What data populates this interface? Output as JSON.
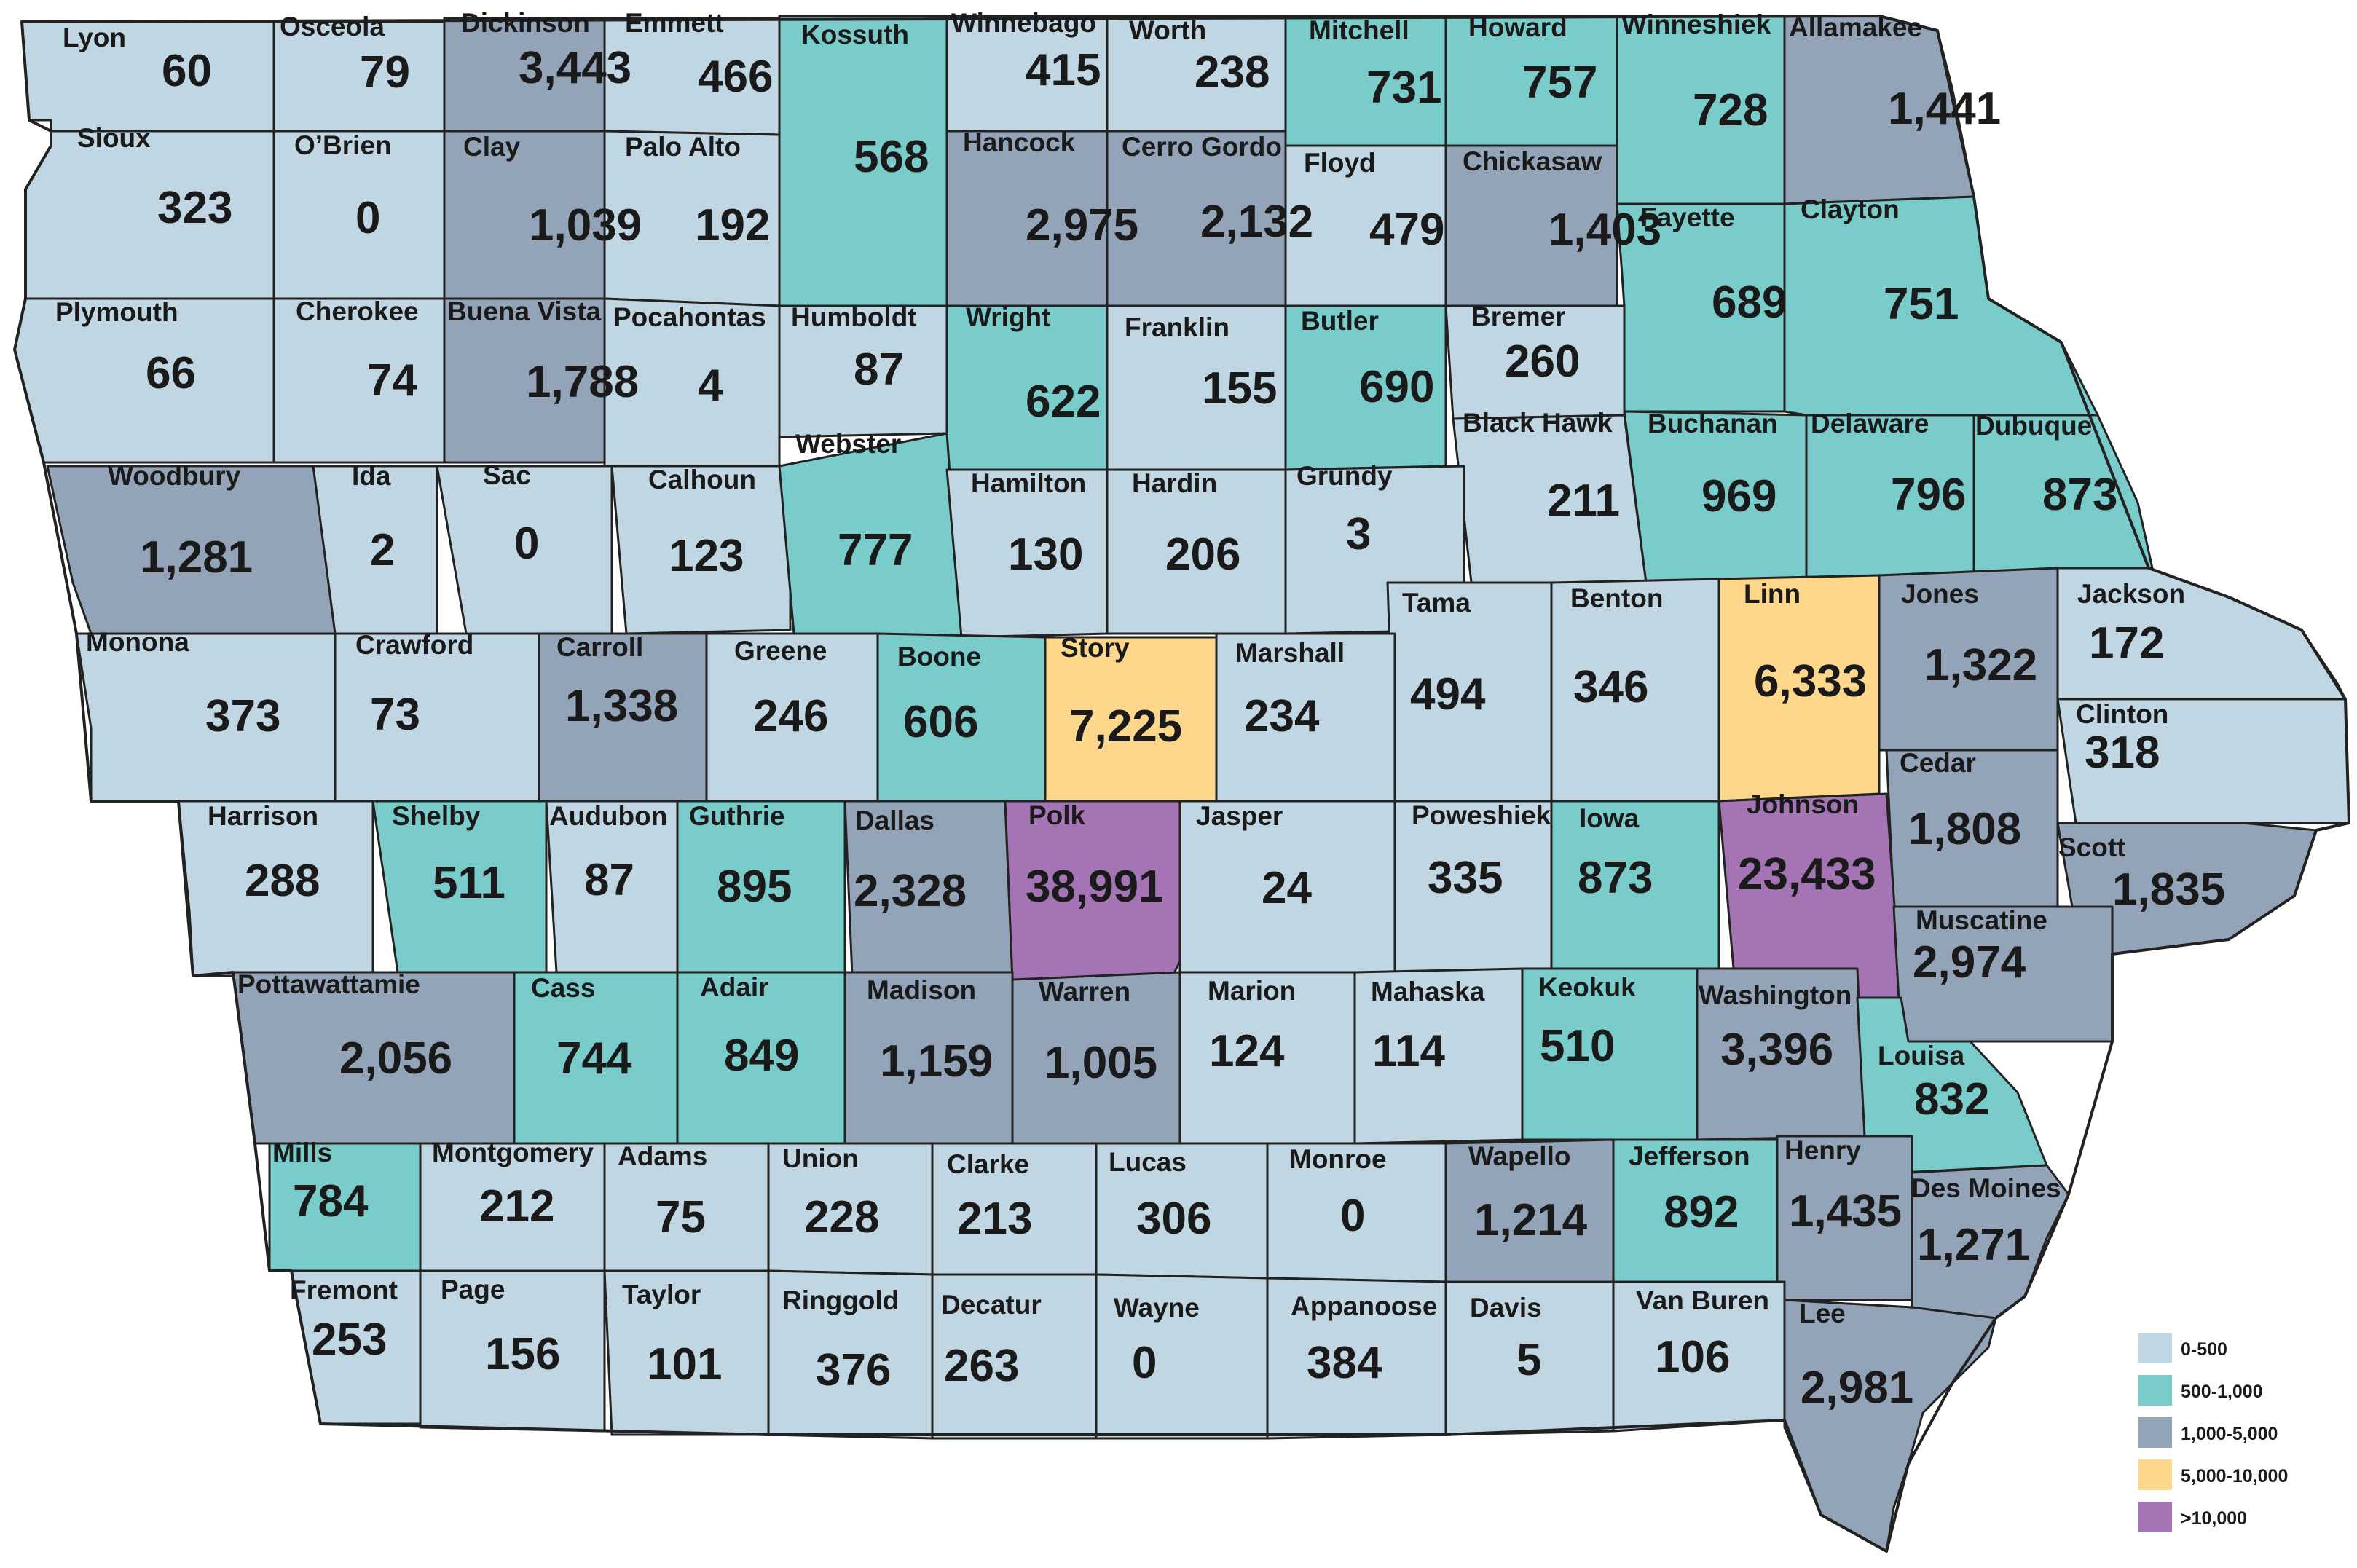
{
  "legend": [
    {
      "label": "0-500",
      "color": "#c0d6e3"
    },
    {
      "label": "500-1,000",
      "color": "#7accca"
    },
    {
      "label": "1,000-5,000",
      "color": "#93a4b9"
    },
    {
      "label": "5,000-10,000",
      "color": "#fdd78c"
    },
    {
      "label": ">10,000",
      "color": "#a474b5"
    }
  ],
  "counties": [
    {
      "name": "Lyon",
      "value": "60",
      "bin": 0
    },
    {
      "name": "Osceola",
      "value": "79",
      "bin": 0
    },
    {
      "name": "Dickinson",
      "value": "3,443",
      "bin": 2
    },
    {
      "name": "Emmett",
      "value": "466",
      "bin": 0
    },
    {
      "name": "Kossuth",
      "value": "568",
      "bin": 1
    },
    {
      "name": "Winnebago",
      "value": "415",
      "bin": 0
    },
    {
      "name": "Worth",
      "value": "238",
      "bin": 0
    },
    {
      "name": "Mitchell",
      "value": "731",
      "bin": 1
    },
    {
      "name": "Howard",
      "value": "757",
      "bin": 1
    },
    {
      "name": "Winneshiek",
      "value": "728",
      "bin": 1
    },
    {
      "name": "Allamakee",
      "value": "1,441",
      "bin": 2
    },
    {
      "name": "Sioux",
      "value": "323",
      "bin": 0
    },
    {
      "name": "O’Brien",
      "value": "0",
      "bin": 0
    },
    {
      "name": "Clay",
      "value": "1,039",
      "bin": 2
    },
    {
      "name": "Palo Alto",
      "value": "192",
      "bin": 0
    },
    {
      "name": "Hancock",
      "value": "2,975",
      "bin": 2
    },
    {
      "name": "Cerro Gordo",
      "value": "2,132",
      "bin": 2
    },
    {
      "name": "Floyd",
      "value": "479",
      "bin": 0
    },
    {
      "name": "Chickasaw",
      "value": "1,403",
      "bin": 2
    },
    {
      "name": "Fayette",
      "value": "689",
      "bin": 1
    },
    {
      "name": "Clayton",
      "value": "751",
      "bin": 1
    },
    {
      "name": "Plymouth",
      "value": "66",
      "bin": 0
    },
    {
      "name": "Cherokee",
      "value": "74",
      "bin": 0
    },
    {
      "name": "Buena Vista",
      "value": "1,788",
      "bin": 2
    },
    {
      "name": "Pocahontas",
      "value": "4",
      "bin": 0
    },
    {
      "name": "Humboldt",
      "value": "87",
      "bin": 0
    },
    {
      "name": "Wright",
      "value": "622",
      "bin": 1
    },
    {
      "name": "Franklin",
      "value": "155",
      "bin": 0
    },
    {
      "name": "Butler",
      "value": "690",
      "bin": 1
    },
    {
      "name": "Bremer",
      "value": "260",
      "bin": 0
    },
    {
      "name": "Black Hawk",
      "value": "211",
      "bin": 0
    },
    {
      "name": "Buchanan",
      "value": "969",
      "bin": 1
    },
    {
      "name": "Delaware",
      "value": "796",
      "bin": 1
    },
    {
      "name": "Dubuque",
      "value": "873",
      "bin": 1
    },
    {
      "name": "Woodbury",
      "value": "1,281",
      "bin": 2
    },
    {
      "name": "Ida",
      "value": "2",
      "bin": 0
    },
    {
      "name": "Sac",
      "value": "0",
      "bin": 0
    },
    {
      "name": "Calhoun",
      "value": "123",
      "bin": 0
    },
    {
      "name": "Webster",
      "value": "777",
      "bin": 1
    },
    {
      "name": "Hamilton",
      "value": "130",
      "bin": 0
    },
    {
      "name": "Hardin",
      "value": "206",
      "bin": 0
    },
    {
      "name": "Grundy",
      "value": "3",
      "bin": 0
    },
    {
      "name": "Tama",
      "value": "494",
      "bin": 0
    },
    {
      "name": "Benton",
      "value": "346",
      "bin": 0
    },
    {
      "name": "Linn",
      "value": "6,333",
      "bin": 3
    },
    {
      "name": "Jones",
      "value": "1,322",
      "bin": 2
    },
    {
      "name": "Jackson",
      "value": "172",
      "bin": 0
    },
    {
      "name": "Monona",
      "value": "373",
      "bin": 0
    },
    {
      "name": "Crawford",
      "value": "73",
      "bin": 0
    },
    {
      "name": "Carroll",
      "value": "1,338",
      "bin": 2
    },
    {
      "name": "Greene",
      "value": "246",
      "bin": 0
    },
    {
      "name": "Boone",
      "value": "606",
      "bin": 1
    },
    {
      "name": "Story",
      "value": "7,225",
      "bin": 3
    },
    {
      "name": "Marshall",
      "value": "234",
      "bin": 0
    },
    {
      "name": "Clinton",
      "value": "318",
      "bin": 0
    },
    {
      "name": "Cedar",
      "value": "1,808",
      "bin": 2
    },
    {
      "name": "Harrison",
      "value": "288",
      "bin": 0
    },
    {
      "name": "Shelby",
      "value": "511",
      "bin": 1
    },
    {
      "name": "Audubon",
      "value": "87",
      "bin": 0
    },
    {
      "name": "Guthrie",
      "value": "895",
      "bin": 1
    },
    {
      "name": "Dallas",
      "value": "2,328",
      "bin": 2
    },
    {
      "name": "Polk",
      "value": "38,991",
      "bin": 4
    },
    {
      "name": "Jasper",
      "value": "24",
      "bin": 0
    },
    {
      "name": "Poweshiek",
      "value": "335",
      "bin": 0
    },
    {
      "name": "Iowa",
      "value": "873",
      "bin": 1
    },
    {
      "name": "Johnson",
      "value": "23,433",
      "bin": 4
    },
    {
      "name": "Scott",
      "value": "1,835",
      "bin": 2
    },
    {
      "name": "Muscatine",
      "value": "2,974",
      "bin": 2
    },
    {
      "name": "Pottawattamie",
      "value": "2,056",
      "bin": 2
    },
    {
      "name": "Cass",
      "value": "744",
      "bin": 1
    },
    {
      "name": "Adair",
      "value": "849",
      "bin": 1
    },
    {
      "name": "Madison",
      "value": "1,159",
      "bin": 2
    },
    {
      "name": "Warren",
      "value": "1,005",
      "bin": 2
    },
    {
      "name": "Marion",
      "value": "124",
      "bin": 0
    },
    {
      "name": "Mahaska",
      "value": "114",
      "bin": 0
    },
    {
      "name": "Keokuk",
      "value": "510",
      "bin": 1
    },
    {
      "name": "Washington",
      "value": "3,396",
      "bin": 2
    },
    {
      "name": "Louisa",
      "value": "832",
      "bin": 1
    },
    {
      "name": "Mills",
      "value": "784",
      "bin": 1
    },
    {
      "name": "Montgomery",
      "value": "212",
      "bin": 0
    },
    {
      "name": "Adams",
      "value": "75",
      "bin": 0
    },
    {
      "name": "Union",
      "value": "228",
      "bin": 0
    },
    {
      "name": "Clarke",
      "value": "213",
      "bin": 0
    },
    {
      "name": "Lucas",
      "value": "306",
      "bin": 0
    },
    {
      "name": "Monroe",
      "value": "0",
      "bin": 0
    },
    {
      "name": "Wapello",
      "value": "1,214",
      "bin": 2
    },
    {
      "name": "Jefferson",
      "value": "892",
      "bin": 1
    },
    {
      "name": "Henry",
      "value": "1,435",
      "bin": 2
    },
    {
      "name": "Des Moines",
      "value": "1,271",
      "bin": 2
    },
    {
      "name": "Fremont",
      "value": "253",
      "bin": 0
    },
    {
      "name": "Page",
      "value": "156",
      "bin": 0
    },
    {
      "name": "Taylor",
      "value": "101",
      "bin": 0
    },
    {
      "name": "Ringgold",
      "value": "376",
      "bin": 0
    },
    {
      "name": "Decatur",
      "value": "263",
      "bin": 0
    },
    {
      "name": "Wayne",
      "value": "0",
      "bin": 0
    },
    {
      "name": "Appanoose",
      "value": "384",
      "bin": 0
    },
    {
      "name": "Davis",
      "value": "5",
      "bin": 0
    },
    {
      "name": "Van Buren",
      "value": "106",
      "bin": 0
    },
    {
      "name": "Lee",
      "value": "2,981",
      "bin": 2
    }
  ]
}
